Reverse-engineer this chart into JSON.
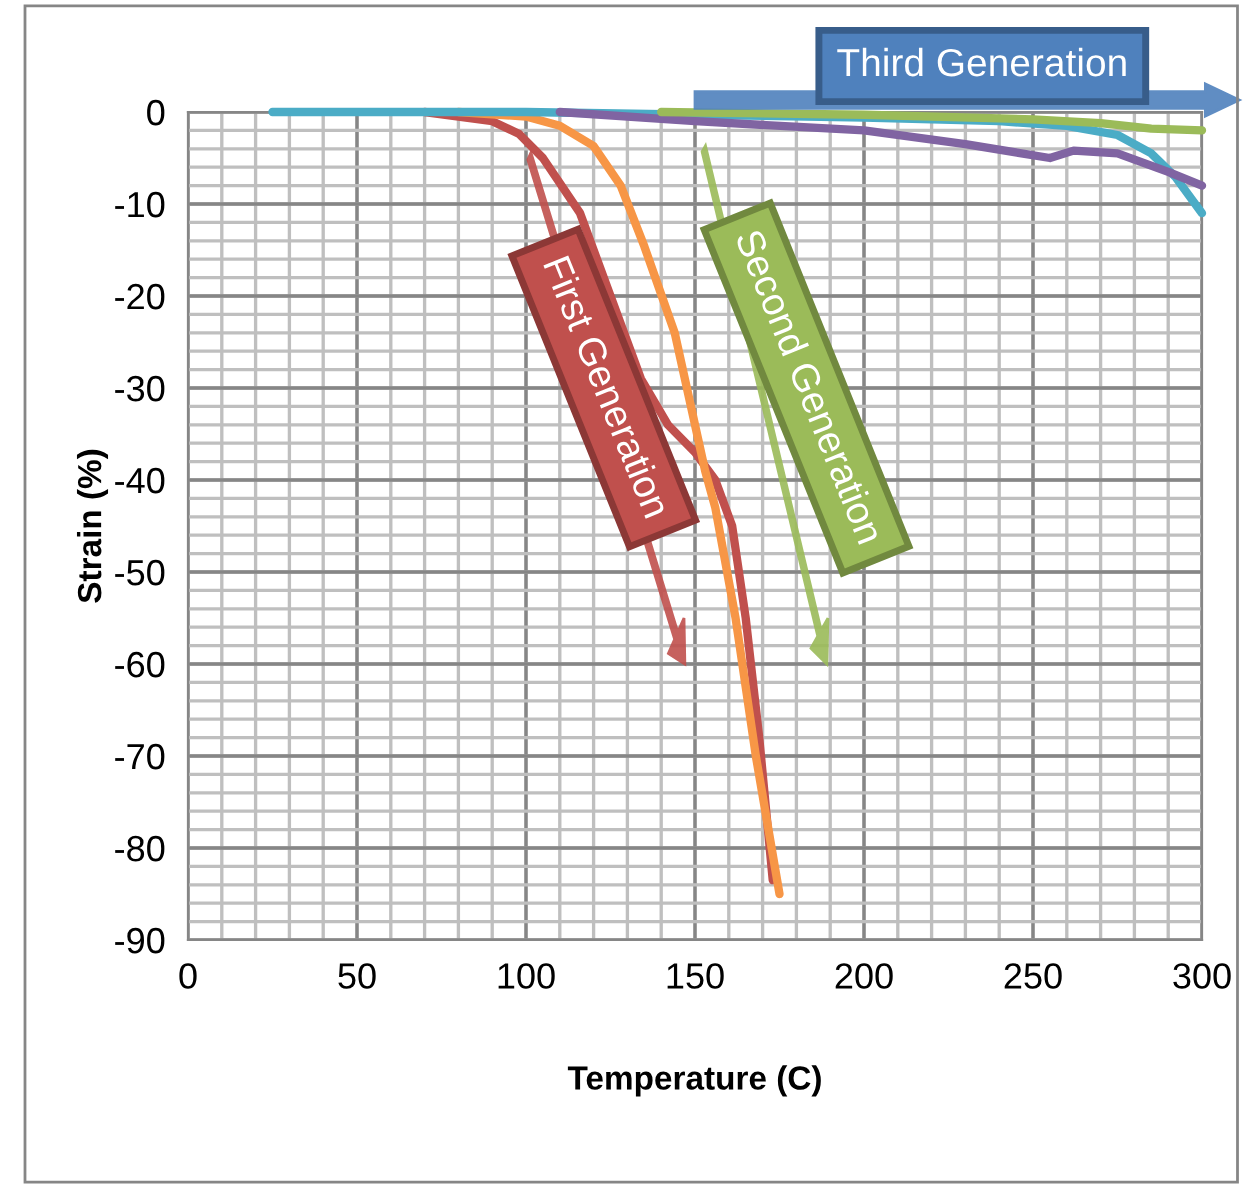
{
  "chart_data": {
    "type": "line",
    "xlabel": "Temperature (C)",
    "ylabel": "Strain (%)",
    "xlim": [
      0,
      300
    ],
    "ylim": [
      -90,
      0
    ],
    "xticks": [
      0,
      50,
      100,
      150,
      200,
      250,
      300
    ],
    "yticks": [
      -90,
      -80,
      -70,
      -60,
      -50,
      -40,
      -30,
      -20,
      -10,
      0
    ],
    "grid": true,
    "marker": "none",
    "line_style": "solid",
    "legend": false,
    "annotations": [
      "First Generation",
      "Second Generation",
      "Third Generation"
    ],
    "series": [
      {
        "color": "#c0504d",
        "x": [
          70,
          90,
          98,
          105,
          116,
          125,
          134,
          142,
          150,
          156,
          161,
          165,
          169,
          173
        ],
        "values": [
          0,
          -1,
          -2.4,
          -5,
          -11,
          -20,
          -29,
          -34,
          -37,
          -40,
          -45,
          -55,
          -68,
          -83.5
        ]
      },
      {
        "color": "#f79646",
        "x": [
          80,
          100,
          110,
          120,
          128,
          135,
          144,
          153,
          156,
          162,
          168,
          175
        ],
        "values": [
          0,
          -0.5,
          -1.5,
          -3.7,
          -8,
          -14.6,
          -24,
          -39,
          -43,
          -55,
          -70,
          -85
        ]
      },
      {
        "color": "#4bacc6",
        "x": [
          25,
          100,
          150,
          200,
          240,
          260,
          275,
          285,
          292,
          300
        ],
        "values": [
          0,
          0,
          -0.3,
          -0.6,
          -1,
          -1.5,
          -2.5,
          -4.5,
          -7,
          -11
        ]
      },
      {
        "color": "#8064a2",
        "x": [
          110,
          150,
          200,
          230,
          255,
          262,
          275,
          290,
          300
        ],
        "values": [
          0,
          -1,
          -2,
          -3.5,
          -5,
          -4.2,
          -4.5,
          -6.5,
          -8
        ]
      },
      {
        "color": "#9bbb59",
        "x": [
          140,
          200,
          250,
          270,
          285,
          300
        ],
        "values": [
          0,
          -0.3,
          -0.8,
          -1.2,
          -1.8,
          -2
        ]
      }
    ]
  }
}
